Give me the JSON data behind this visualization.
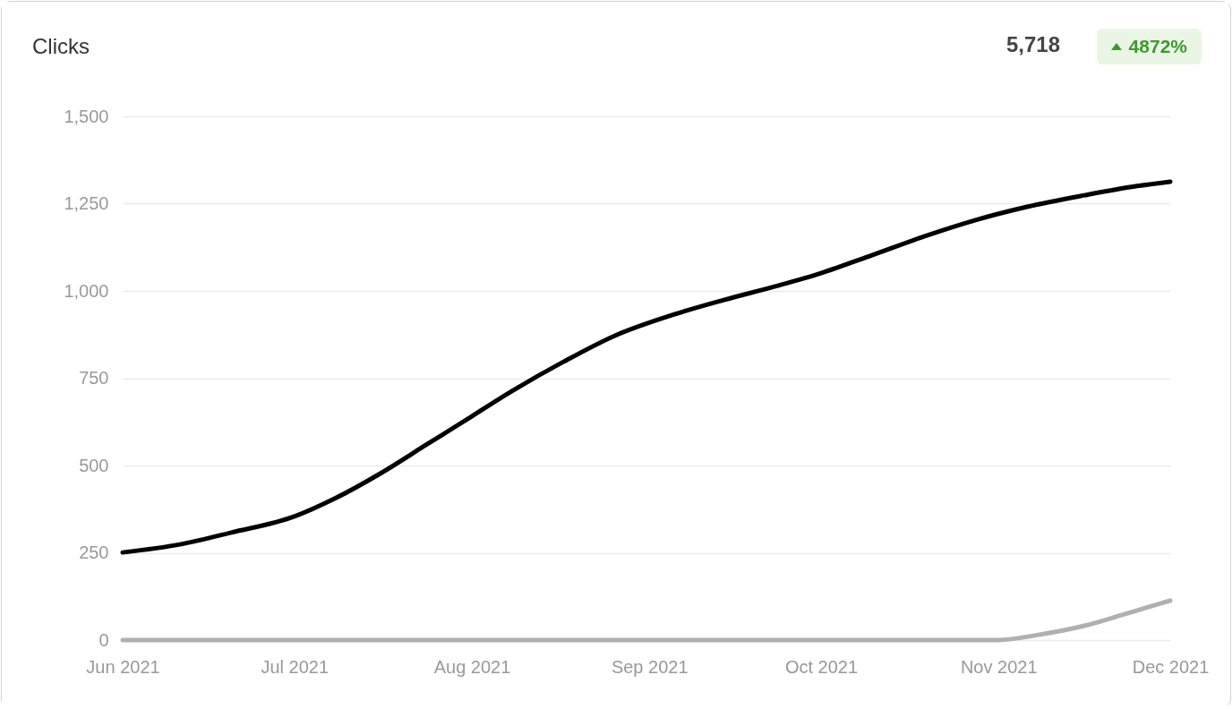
{
  "chart_data": {
    "type": "line",
    "title": "Clicks",
    "annotations": [
      "5,718",
      "4872%"
    ],
    "x": [
      "2021-06-01",
      "2021-06-11",
      "2021-06-20",
      "2021-07-01",
      "2021-07-08",
      "2021-07-16",
      "2021-07-24",
      "2021-08-01",
      "2021-08-08",
      "2021-08-17",
      "2021-08-26",
      "2021-09-05",
      "2021-09-14",
      "2021-09-23",
      "2021-10-01",
      "2021-10-10",
      "2021-10-19",
      "2021-10-28",
      "2021-11-06",
      "2021-11-16",
      "2021-11-25",
      "2021-12-01"
    ],
    "series": [
      {
        "color": "#000000",
        "values": [
          251,
          274,
          308,
          354,
          405,
          477,
          559,
          641,
          713,
          797,
          872,
          931,
          974,
          1013,
          1051,
          1103,
          1156,
          1203,
          1241,
          1274,
          1300,
          1313
        ]
      },
      {
        "color": "#b0b0b0",
        "x": [
          "2021-06-01",
          "2021-11-01",
          "2021-11-08",
          "2021-11-16",
          "2021-11-23",
          "2021-12-01"
        ],
        "values": [
          0,
          0,
          15,
          41,
          74,
          113
        ]
      }
    ],
    "xlim": [
      "2021-06-01",
      "2021-12-01"
    ],
    "xticks": [
      {
        "value": "2021-06-01",
        "label": "Jun 2021"
      },
      {
        "value": "2021-07-01",
        "label": "Jul 2021"
      },
      {
        "value": "2021-08-01",
        "label": "Aug 2021"
      },
      {
        "value": "2021-09-01",
        "label": "Sep 2021"
      },
      {
        "value": "2021-10-01",
        "label": "Oct 2021"
      },
      {
        "value": "2021-11-01",
        "label": "Nov 2021"
      },
      {
        "value": "2021-12-01",
        "label": "Dec 2021"
      }
    ],
    "ylim": [
      0,
      1500
    ],
    "yticks": [
      0,
      {
        "value": 250,
        "label": "250"
      },
      {
        "value": 500,
        "label": "500"
      },
      {
        "value": 750,
        "label": "750"
      },
      {
        "value": 1000,
        "label": "1,000"
      },
      {
        "value": 1250,
        "label": "1,250"
      },
      {
        "value": 1500,
        "label": "1,500"
      }
    ],
    "grid": "y",
    "marker": "none",
    "line_style": "solid",
    "legend": false
  }
}
